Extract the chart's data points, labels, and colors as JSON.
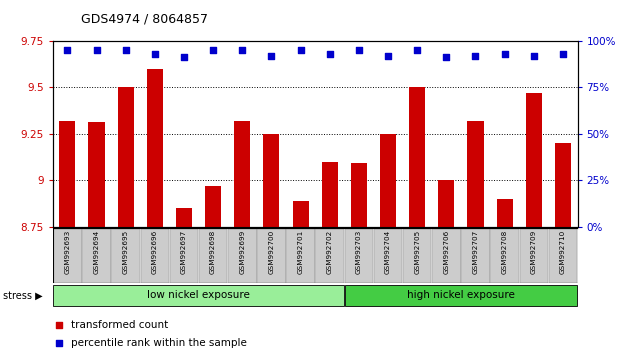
{
  "title": "GDS4974 / 8064857",
  "samples": [
    "GSM992693",
    "GSM992694",
    "GSM992695",
    "GSM992696",
    "GSM992697",
    "GSM992698",
    "GSM992699",
    "GSM992700",
    "GSM992701",
    "GSM992702",
    "GSM992703",
    "GSM992704",
    "GSM992705",
    "GSM992706",
    "GSM992707",
    "GSM992708",
    "GSM992709",
    "GSM992710"
  ],
  "transformed_count": [
    9.32,
    9.31,
    9.5,
    9.6,
    8.85,
    8.97,
    9.32,
    9.25,
    8.89,
    9.1,
    9.09,
    9.25,
    9.5,
    9.0,
    9.32,
    8.9,
    9.47,
    9.2
  ],
  "percentile_rank": [
    95,
    95,
    95,
    93,
    91,
    95,
    95,
    92,
    95,
    93,
    95,
    92,
    95,
    91,
    92,
    93,
    92,
    93
  ],
  "ylim_left": [
    8.75,
    9.75
  ],
  "ylim_right": [
    0,
    100
  ],
  "bar_color": "#cc0000",
  "dot_color": "#0000cc",
  "grid_color": "#000000",
  "low_nickel_count": 10,
  "high_nickel_count": 8,
  "low_nickel_label": "low nickel exposure",
  "high_nickel_label": "high nickel exposure",
  "stress_label": "stress",
  "legend_bar_label": "transformed count",
  "legend_dot_label": "percentile rank within the sample",
  "low_group_color": "#99ee99",
  "high_group_color": "#44cc44",
  "bar_label_color": "#cc0000",
  "dot_label_color": "#0000cc",
  "tick_label_bg": "#cccccc",
  "yticks_left": [
    8.75,
    9.0,
    9.25,
    9.5,
    9.75
  ],
  "ytick_labels_left": [
    "8.75",
    "9",
    "9.25",
    "9.5",
    "9.75"
  ],
  "yticks_right": [
    0,
    25,
    50,
    75,
    100
  ],
  "ytick_labels_right": [
    "0%",
    "25%",
    "50%",
    "75%",
    "100%"
  ]
}
